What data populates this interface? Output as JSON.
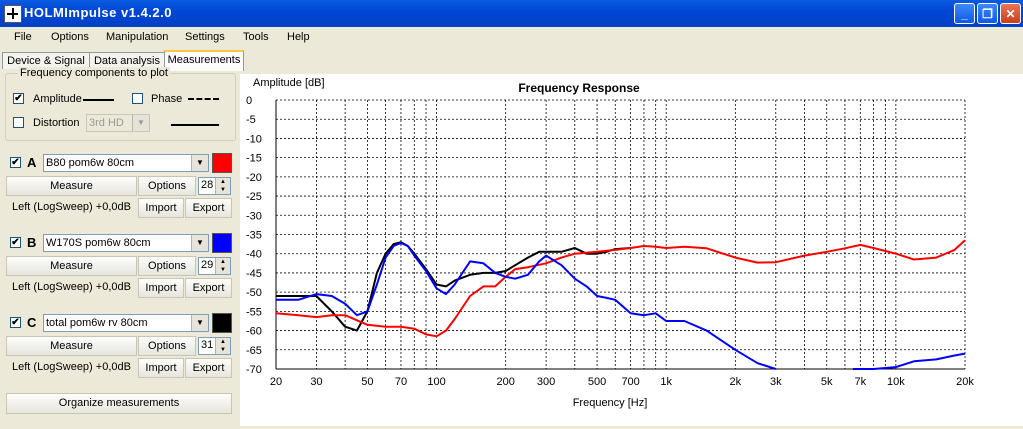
{
  "window": {
    "title": "HOLMImpulse  v1.4.2.0",
    "minimize": "_",
    "maximize": "❐",
    "close": "✕"
  },
  "menu": [
    "File",
    "Options",
    "Manipulation",
    "Settings",
    "Tools",
    "Help"
  ],
  "tabs": [
    "Device & Signal",
    "Data analysis",
    "Measurements"
  ],
  "active_tab": "Measurements",
  "freq_group": {
    "title": "Frequency components to plot",
    "amplitude_label": "Amplitude",
    "amplitude_checked": true,
    "phase_label": "Phase",
    "phase_checked": false,
    "distortion_label": "Distortion",
    "distortion_checked": false,
    "distortion_select": "3rd HD"
  },
  "measurements": [
    {
      "letter": "A",
      "checked": true,
      "name": "B80 pom6w 80cm",
      "color": "#ff0000",
      "measure_label": "Measure",
      "options_label": "Options",
      "count": "28",
      "status": "Left (LogSweep) +0,0dB",
      "import_label": "Import",
      "export_label": "Export"
    },
    {
      "letter": "B",
      "checked": true,
      "name": "W170S pom6w 80cm",
      "color": "#0000ff",
      "measure_label": "Measure",
      "options_label": "Options",
      "count": "29",
      "status": "Left (LogSweep) +0,0dB",
      "import_label": "Import",
      "export_label": "Export"
    },
    {
      "letter": "C",
      "checked": true,
      "name": "total pom6w rv 80cm",
      "color": "#000000",
      "measure_label": "Measure",
      "options_label": "Options",
      "count": "31",
      "status": "Left (LogSweep) +0,0dB",
      "import_label": "Import",
      "export_label": "Export"
    }
  ],
  "organize_label": "Organize measurements",
  "chart_data": {
    "type": "line",
    "title": "Frequency Response",
    "xlabel": "Frequency [Hz]",
    "ylabel": "Amplitude [dB]",
    "xscale": "log",
    "xlim": [
      20,
      20000
    ],
    "ylim": [
      -70,
      0
    ],
    "grid": true,
    "x_ticks": [
      20,
      30,
      50,
      70,
      100,
      200,
      300,
      500,
      700,
      1000,
      2000,
      3000,
      5000,
      7000,
      10000,
      20000
    ],
    "x_tick_labels": [
      "20",
      "30",
      "50",
      "70",
      "100",
      "200",
      "300",
      "500",
      "700",
      "1k",
      "2k",
      "3k",
      "5k",
      "7k",
      "10k",
      "20k"
    ],
    "y_ticks": [
      0,
      -5,
      -10,
      -15,
      -20,
      -25,
      -30,
      -35,
      -40,
      -45,
      -50,
      -55,
      -60,
      -65,
      -70
    ],
    "y_tick_labels": [
      "0",
      "-5",
      "-10",
      "-15",
      "-20",
      "-25",
      "-30",
      "-35",
      "-40",
      "-45",
      "-50",
      "-55",
      "-60",
      "-65",
      "-70"
    ],
    "series": [
      {
        "color": "#000000",
        "x": [
          20,
          25,
          30,
          35,
          40,
          45,
          50,
          55,
          60,
          65,
          70,
          75,
          80,
          90,
          100,
          110,
          120,
          140,
          160,
          180,
          200,
          220,
          250,
          280,
          300,
          350,
          400,
          450,
          500,
          550,
          600,
          700
        ],
        "y": [
          -51,
          -51,
          -51,
          -55,
          -59,
          -60,
          -55,
          -45,
          -40,
          -37.5,
          -37,
          -38,
          -40,
          -44,
          -48,
          -48.5,
          -47,
          -45.5,
          -45,
          -45,
          -44.5,
          -43,
          -41,
          -39.5,
          -39.5,
          -39.5,
          -38.5,
          -40,
          -40,
          -39.5,
          -38.8,
          -38.5
        ]
      },
      {
        "color": "#ff0000",
        "x": [
          20,
          25,
          30,
          35,
          40,
          50,
          60,
          70,
          80,
          90,
          100,
          110,
          120,
          140,
          160,
          180,
          200,
          220,
          250,
          300,
          350,
          400,
          500,
          600,
          700,
          800,
          900,
          1000,
          1200,
          1500,
          2000,
          2500,
          3000,
          4000,
          5000,
          6000,
          7000,
          8000,
          10000,
          12000,
          15000,
          18000,
          20000
        ],
        "y": [
          -55.5,
          -56,
          -56.5,
          -56,
          -56,
          -58.5,
          -59,
          -59,
          -59.5,
          -61,
          -61.5,
          -60,
          -57,
          -51,
          -48.5,
          -48.5,
          -46,
          -44,
          -43.5,
          -42.5,
          -41,
          -40,
          -39.5,
          -39,
          -38.5,
          -38,
          -38.2,
          -38.5,
          -38.2,
          -38.6,
          -41,
          -42.3,
          -42.2,
          -40.5,
          -39.5,
          -38.6,
          -37.7,
          -38.5,
          -40,
          -41.5,
          -41,
          -39,
          -36.5
        ]
      },
      {
        "color": "#0000ff",
        "x": [
          20,
          25,
          30,
          35,
          40,
          45,
          50,
          55,
          60,
          65,
          70,
          75,
          80,
          90,
          100,
          110,
          120,
          140,
          160,
          180,
          200,
          220,
          250,
          280,
          300,
          350,
          400,
          450,
          500,
          550,
          600,
          700,
          800,
          900,
          1000,
          1200,
          1500,
          2000,
          2500,
          3000
        ],
        "y": [
          -52,
          -52,
          -50.5,
          -51,
          -53,
          -56,
          -55,
          -48,
          -41,
          -38,
          -37.2,
          -38,
          -40.5,
          -44.5,
          -49,
          -50.5,
          -48,
          -42,
          -42.5,
          -45,
          -46,
          -46.5,
          -45.5,
          -42,
          -40.5,
          -43,
          -46.5,
          -48.5,
          -51,
          -51.5,
          -52,
          -55.5,
          -56,
          -55.5,
          -57.5,
          -57.5,
          -60,
          -65,
          -68.5,
          -71
        ]
      },
      {
        "color": "#0000ff",
        "x": [
          6500,
          8000,
          10000,
          12000,
          15000,
          18000,
          20000
        ],
        "y": [
          -70,
          -70,
          -69.5,
          -68,
          -67.5,
          -66.5,
          -66
        ]
      }
    ]
  }
}
